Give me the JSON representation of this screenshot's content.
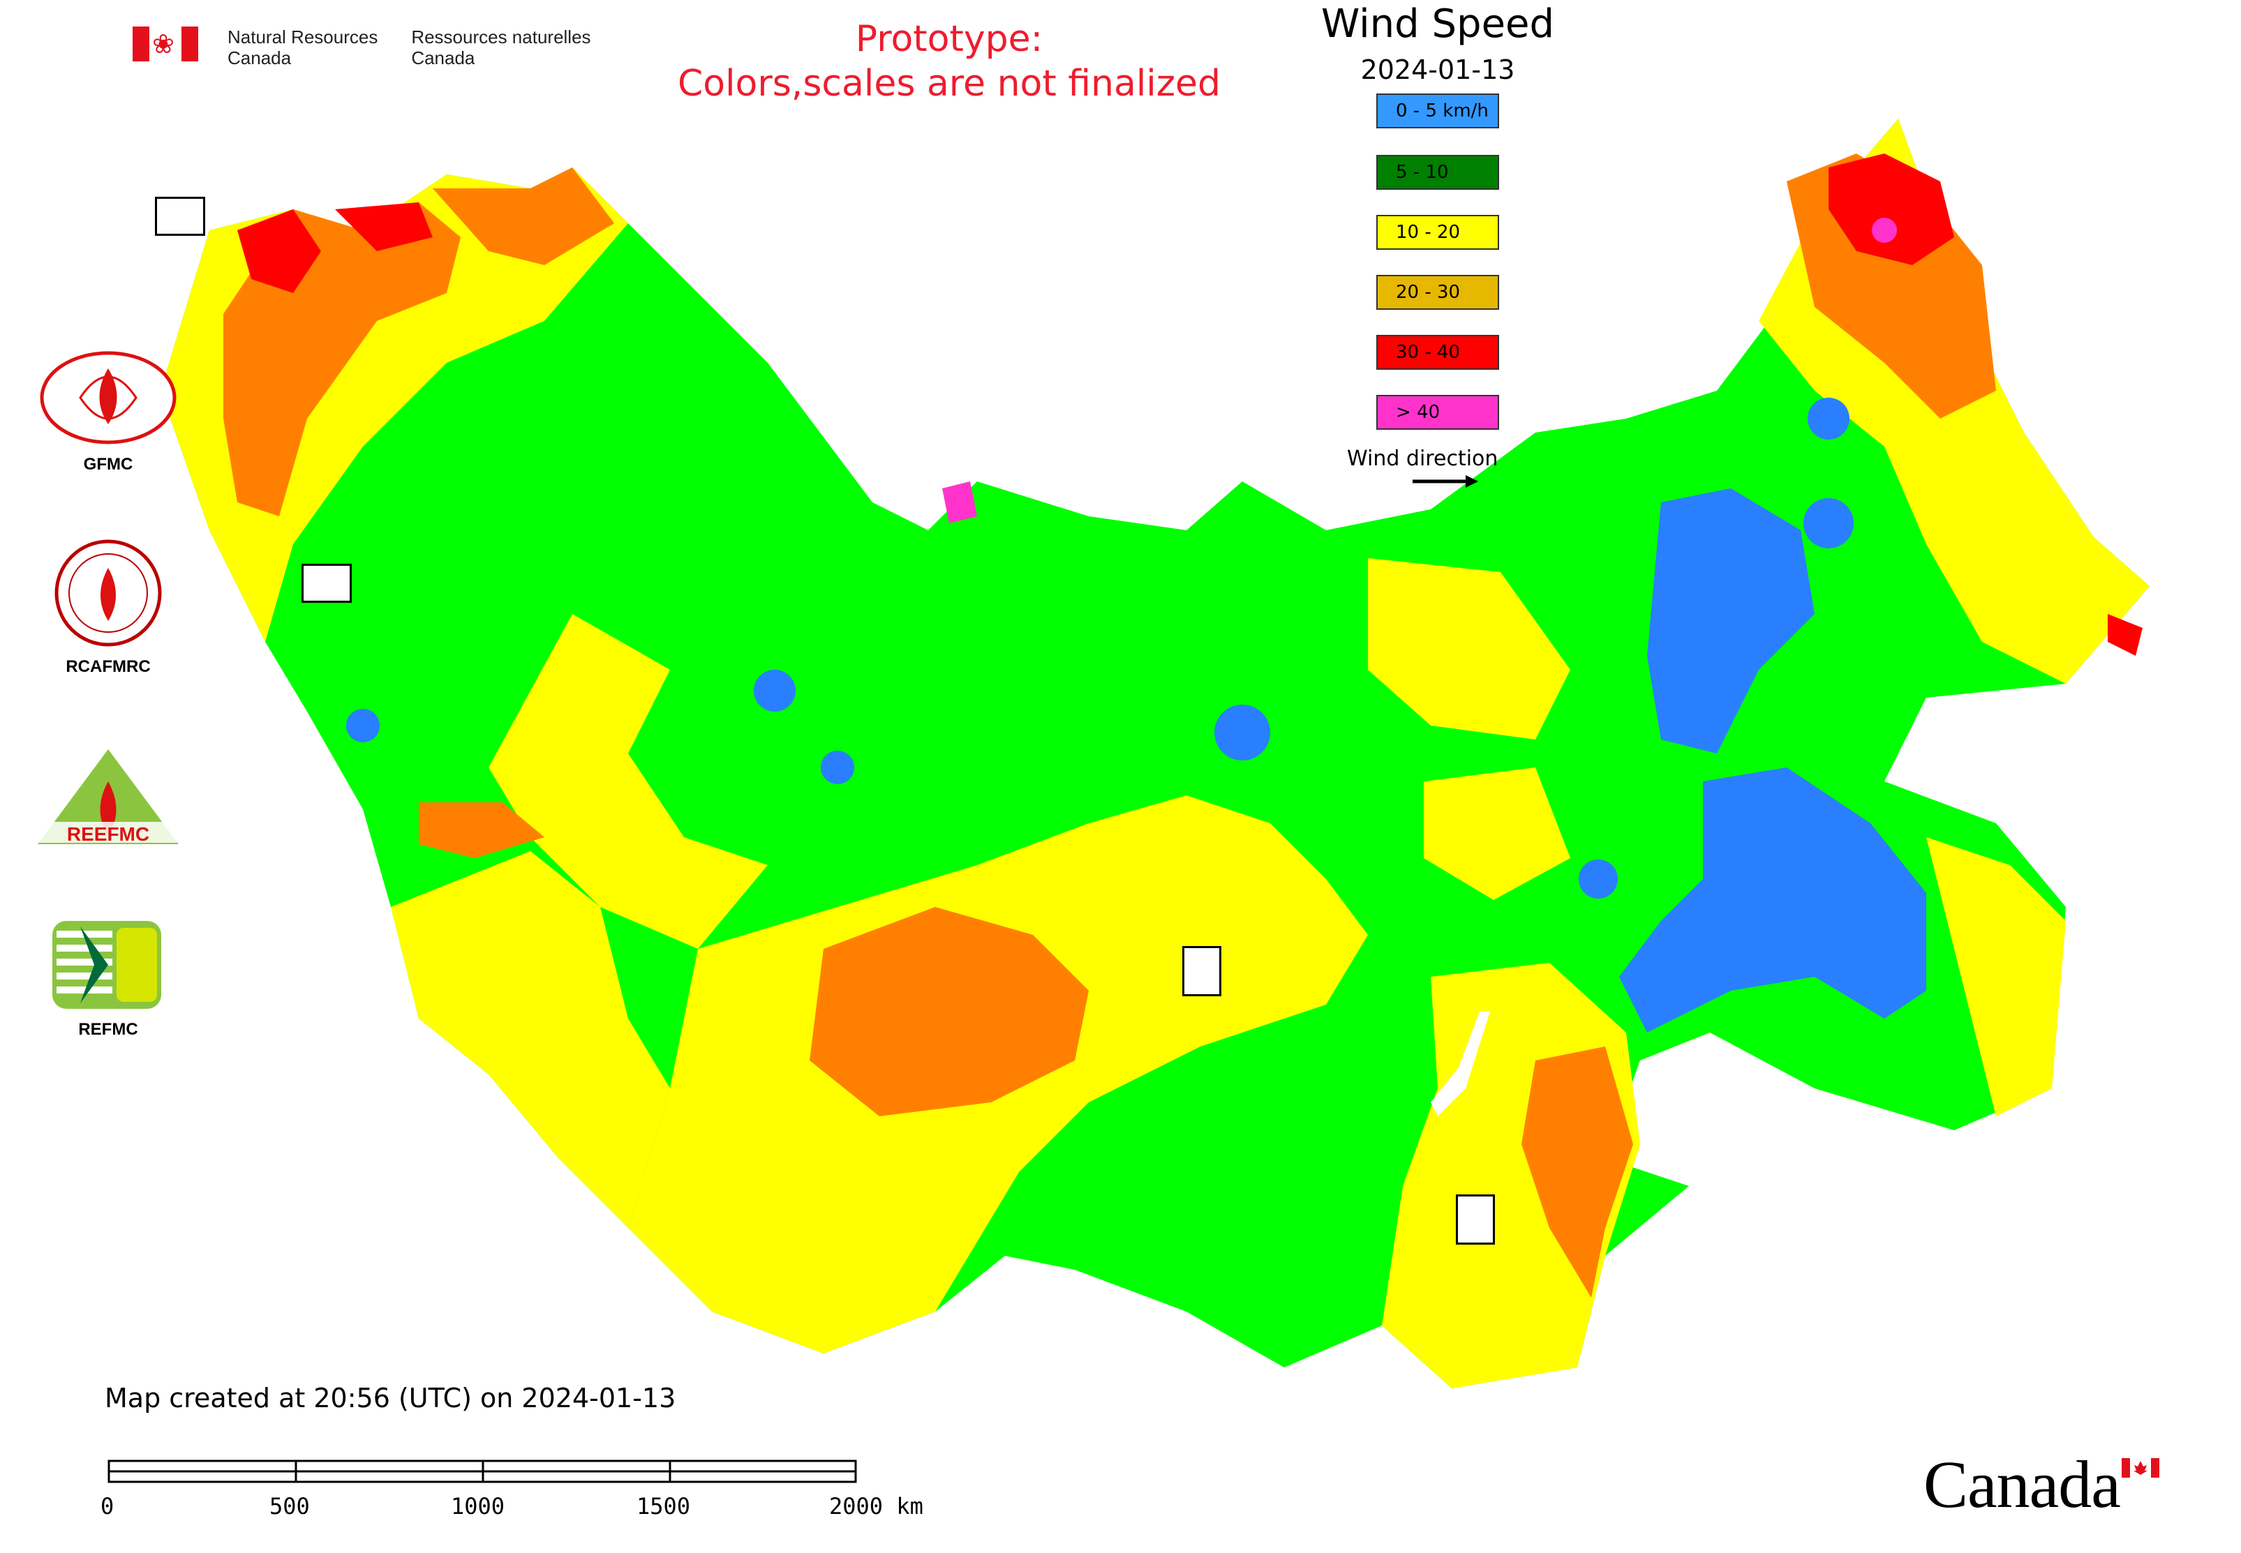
{
  "header": {
    "gov_en_line1": "Natural Resources",
    "gov_en_line2": "Canada",
    "gov_fr_line1": "Ressources naturelles",
    "gov_fr_line2": "Canada",
    "prototype_line1": "Prototype:",
    "prototype_line2": "Colors,scales are not finalized"
  },
  "legend": {
    "title": "Wind Speed",
    "date": "2024-01-13",
    "items": [
      {
        "label": "0 - 5 km/h",
        "color": "#3399ff"
      },
      {
        "label": "5 - 10",
        "color": "#008000"
      },
      {
        "label": "10 - 20",
        "color": "#ffff00"
      },
      {
        "label": "20 - 30",
        "color": "#e6b800"
      },
      {
        "label": "30 - 40",
        "color": "#ff0000"
      },
      {
        "label": "> 40",
        "color": "#ff33cc"
      }
    ],
    "wind_direction_label": "Wind direction"
  },
  "map_colors": {
    "green": "#00ff00",
    "yellow": "#ffff00",
    "orange": "#ff8000",
    "red": "#ff0000",
    "blue": "#2a7fff",
    "magenta": "#ff33cc"
  },
  "side_logos": [
    {
      "label": "GFMC",
      "icon": "gfmc-logo"
    },
    {
      "label": "RCAFMRC",
      "icon": "rcafmrc-logo"
    },
    {
      "label": "",
      "icon": "reefmc-triangle-logo",
      "text": "REEFMC"
    },
    {
      "label": "REFMC",
      "icon": "refmc-logo"
    }
  ],
  "footer": {
    "created": "Map created at 20:56 (UTC) on 2024-01-13",
    "scale_labels": [
      "0",
      "500",
      "1000",
      "1500",
      "2000 km"
    ],
    "canada_wordmark": "Canada"
  }
}
